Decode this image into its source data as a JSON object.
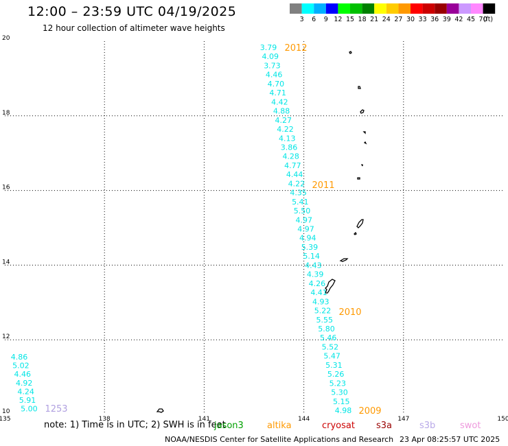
{
  "header": {
    "title": "12:00 – 23:59 UTC 04/19/2025",
    "subtitle": "12 hour collection of altimeter wave heights"
  },
  "legend": {
    "unit": "(ft)",
    "bins": [
      {
        "label": "3",
        "color": "#808080"
      },
      {
        "label": "6",
        "color": "#00ffff"
      },
      {
        "label": "9",
        "color": "#00b0ff"
      },
      {
        "label": "12",
        "color": "#0000ff"
      },
      {
        "label": "15",
        "color": "#00ff00"
      },
      {
        "label": "18",
        "color": "#00c000"
      },
      {
        "label": "21",
        "color": "#008000"
      },
      {
        "label": "24",
        "color": "#ffff00"
      },
      {
        "label": "27",
        "color": "#ffcc00"
      },
      {
        "label": "30",
        "color": "#ff9900"
      },
      {
        "label": "33",
        "color": "#ff0000"
      },
      {
        "label": "36",
        "color": "#cc0000"
      },
      {
        "label": "39",
        "color": "#990000"
      },
      {
        "label": "42",
        "color": "#990099"
      },
      {
        "label": "45",
        "color": "#cc99ff"
      },
      {
        "label": "70",
        "color": "#ff88ff"
      },
      {
        "label": "",
        "color": "#000000"
      }
    ]
  },
  "map": {
    "lon_range": [
      135,
      150
    ],
    "lat_range": [
      10,
      20
    ],
    "lon_ticks": [
      "135",
      "138",
      "141",
      "144",
      "147",
      "150"
    ],
    "lat_ticks": [
      "10",
      "12",
      "14",
      "16",
      "18",
      "20"
    ],
    "grid": "dotted",
    "track_color": "#00e5e5",
    "time_label_color": "#ff9900",
    "track_main": {
      "heights": [
        "3.79",
        "4.09",
        "3.73",
        "4.46",
        "4.70",
        "4.71",
        "4.42",
        "4.88",
        "4.27",
        "4.22",
        "4.13",
        "3.86",
        "4.28",
        "4.77",
        "4.44",
        "4.22",
        "4.35",
        "5.41",
        "5.50",
        "4.97",
        "4.97",
        "4.94",
        "5.39",
        "5.14",
        "4.43",
        "4.39",
        "4.26",
        "4.41",
        "4.93",
        "5.22",
        "5.55",
        "5.80",
        "5.46",
        "5.52",
        "5.47",
        "5.31",
        "5.26",
        "5.23",
        "5.30",
        "5.15",
        "4.98"
      ],
      "times": [
        "2012",
        "2011",
        "2010",
        "2009"
      ]
    },
    "track_west": {
      "heights": [
        "4.86",
        "5.02",
        "4.46",
        "4.92",
        "4.24",
        "5.91",
        "5.00"
      ],
      "time": "1253"
    },
    "time_label_west_color": "#b0a0e0"
  },
  "footer": {
    "note": "note:  1) Time is in UTC;  2) SWH is in feet",
    "satellites": {
      "jason": "jason3",
      "altika": "altika",
      "cryosat": "cryosat",
      "s3a": "s3a",
      "s3b": "s3b",
      "swot": "swot"
    },
    "credit": "NOAA/NESDIS Center for Satellite Applications and Research",
    "timestamp": "23 Apr 08:25:57 UTC 2025"
  }
}
